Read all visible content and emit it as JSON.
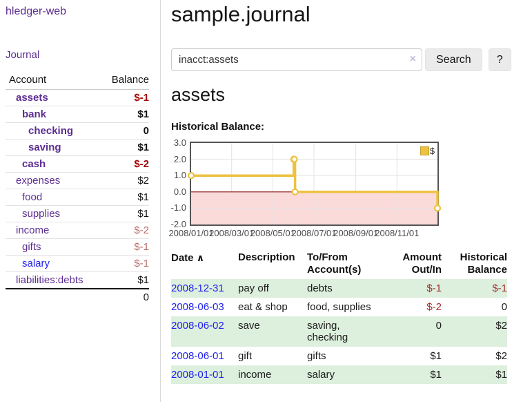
{
  "colors": {
    "purple_link": "#5c2d91",
    "blue_link": "#2222ee",
    "negative_strong": "#a40000",
    "negative_muted": "#b86a6a",
    "negative_table": "#a03030",
    "row_stripe_green": "#ddefdd",
    "chart_line": "#EDC240",
    "chart_negative_region": "#fbdada",
    "chart_zero_line": "#8b1414",
    "chart_grid": "#e3e3e3",
    "chart_border": "#545454"
  },
  "sidebar": {
    "brand": "hledger-web",
    "nav": [
      {
        "label": "Journal"
      }
    ],
    "table": {
      "account_header": "Account",
      "balance_header": "Balance",
      "rows": [
        {
          "name": "assets",
          "balance": "$-1",
          "depth": 0,
          "bold": true,
          "negative": true
        },
        {
          "name": "bank",
          "balance": "$1",
          "depth": 1,
          "bold": true,
          "negative": false
        },
        {
          "name": "checking",
          "balance": "0",
          "depth": 2,
          "bold": true,
          "negative": false
        },
        {
          "name": "saving",
          "balance": "$1",
          "depth": 2,
          "bold": true,
          "negative": false
        },
        {
          "name": "cash",
          "balance": "$-2",
          "depth": 1,
          "bold": true,
          "negative": true
        },
        {
          "name": "expenses",
          "balance": "$2",
          "depth": 0,
          "bold": false,
          "negative": false
        },
        {
          "name": "food",
          "balance": "$1",
          "depth": 1,
          "bold": false,
          "negative": false
        },
        {
          "name": "supplies",
          "balance": "$1",
          "depth": 1,
          "bold": false,
          "negative": false
        },
        {
          "name": "income",
          "balance": "$-2",
          "depth": 0,
          "bold": false,
          "negative": true
        },
        {
          "name": "gifts",
          "balance": "$-1",
          "depth": 1,
          "bold": false,
          "negative": true
        },
        {
          "name": "salary",
          "balance": "$-1",
          "depth": 1,
          "bold": false,
          "negative": true,
          "link_style": "unvisited"
        },
        {
          "name": "liabilities:debts",
          "balance": "$1",
          "depth": 0,
          "bold": false,
          "negative": false
        }
      ],
      "total": "0"
    }
  },
  "main": {
    "title": "sample.journal",
    "search": {
      "value": "inacct:assets",
      "clear_icon": "×",
      "search_button": "Search",
      "help_button": "?"
    },
    "account_heading": "assets",
    "chart_heading": "Historical Balance:"
  },
  "chart_data": {
    "type": "line",
    "title": "Historical Balance:",
    "step": true,
    "x_range": [
      "2008-01-01",
      "2008-12-31"
    ],
    "ylim": [
      -2,
      3
    ],
    "x_ticks": [
      {
        "date": "2008-01-01",
        "label": "2008/01/01"
      },
      {
        "date": "2008-03-01",
        "label": "2008/03/01"
      },
      {
        "date": "2008-05-01",
        "label": "2008/05/01"
      },
      {
        "date": "2008-07-01",
        "label": "2008/07/01"
      },
      {
        "date": "2008-09-01",
        "label": "2008/09/01"
      },
      {
        "date": "2008-11-01",
        "label": "2008/11/01"
      }
    ],
    "y_ticks": [
      {
        "value": 3,
        "label": "3.0"
      },
      {
        "value": 2,
        "label": "2.0"
      },
      {
        "value": 1,
        "label": "1.0"
      },
      {
        "value": 0,
        "label": "0.0"
      },
      {
        "value": -1,
        "label": "-1.0"
      },
      {
        "value": -2,
        "label": "-2.0"
      }
    ],
    "series": [
      {
        "name": "$",
        "color": "#EDC240",
        "points": [
          {
            "date": "2008-01-01",
            "value": 1
          },
          {
            "date": "2008-06-01",
            "value": 2
          },
          {
            "date": "2008-06-02",
            "value": 2
          },
          {
            "date": "2008-06-03",
            "value": 0
          },
          {
            "date": "2008-12-31",
            "value": -1
          }
        ]
      }
    ],
    "legend": {
      "label": "$",
      "position": "top-right"
    },
    "grid": true
  },
  "register": {
    "headers": {
      "date": "Date",
      "sort_icon": "∧",
      "description": "Description",
      "accounts": "To/From Account(s)",
      "amount": "Amount Out/In",
      "balance": "Historical Balance"
    },
    "rows": [
      {
        "date": "2008-12-31",
        "description": "pay off",
        "accounts": "debts",
        "amount": "$-1",
        "amount_negative": true,
        "balance": "$-1",
        "balance_negative": true
      },
      {
        "date": "2008-06-03",
        "description": "eat & shop",
        "accounts": "food, supplies",
        "amount": "$-2",
        "amount_negative": true,
        "balance": "0",
        "balance_negative": false
      },
      {
        "date": "2008-06-02",
        "description": "save",
        "accounts": "saving, checking",
        "amount": "0",
        "amount_negative": false,
        "balance": "$2",
        "balance_negative": false
      },
      {
        "date": "2008-06-01",
        "description": "gift",
        "accounts": "gifts",
        "amount": "$1",
        "amount_negative": false,
        "balance": "$2",
        "balance_negative": false
      },
      {
        "date": "2008-01-01",
        "description": "income",
        "accounts": "salary",
        "amount": "$1",
        "amount_negative": false,
        "balance": "$1",
        "balance_negative": false
      }
    ]
  }
}
